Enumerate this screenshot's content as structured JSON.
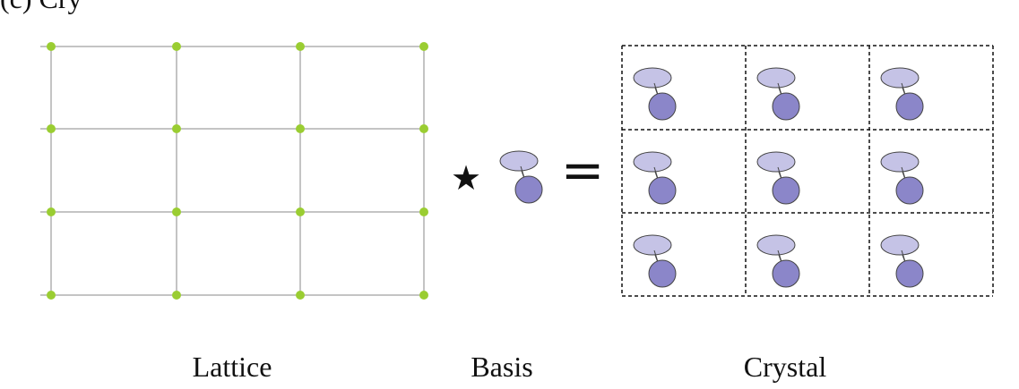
{
  "corner_label": "(c) Cry",
  "captions": {
    "lattice": "Lattice",
    "basis": "Basis",
    "crystal": "Crystal"
  },
  "operators": {
    "convolution": "★",
    "equals": "="
  },
  "lattice": {
    "rows": 4,
    "cols": 4
  },
  "crystal": {
    "rows": 3,
    "cols": 3
  },
  "colors": {
    "lattice_line": "#8a8a8a",
    "lattice_point": "#9acd32",
    "ellipse_fill": "#c5c3e6",
    "circle_fill": "#8b86c9",
    "outline": "#444444",
    "cell_border": "#111111"
  }
}
